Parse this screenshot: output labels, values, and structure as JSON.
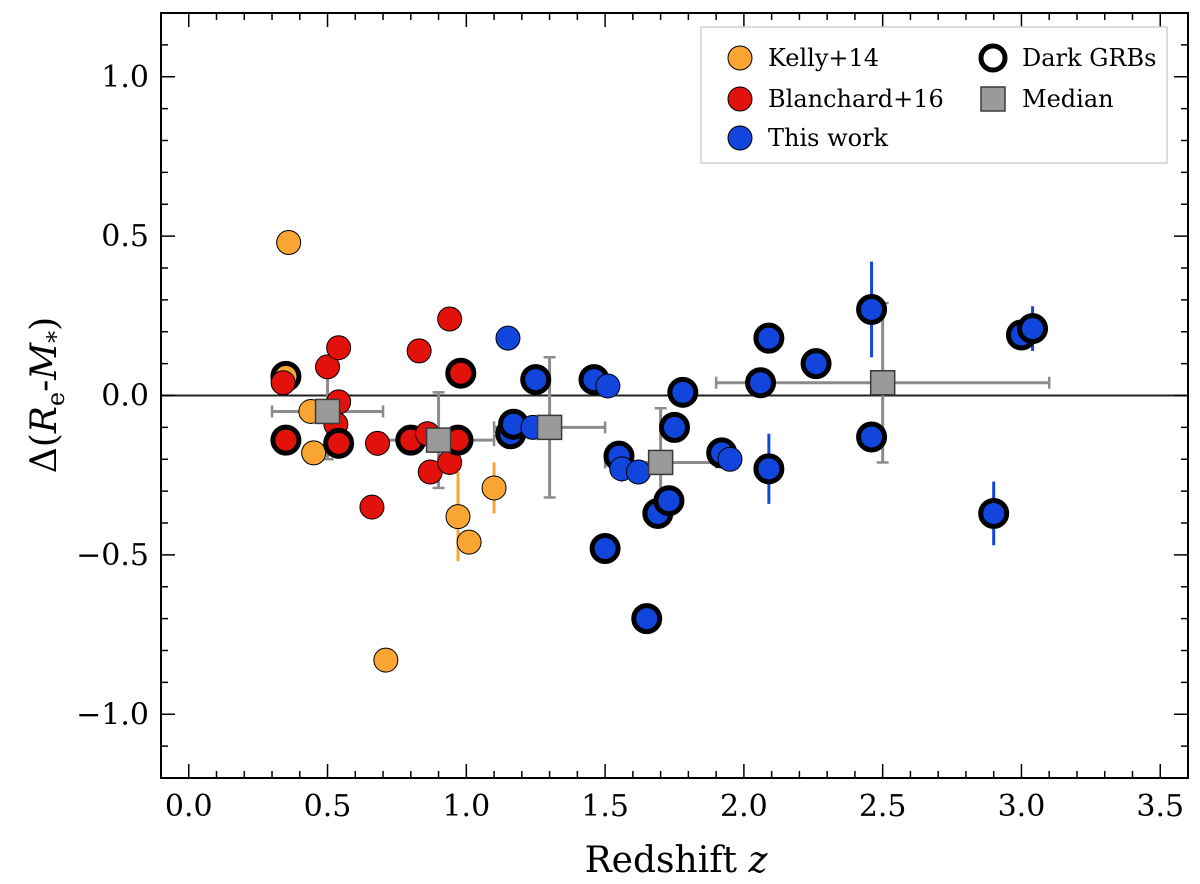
{
  "chart_data": {
    "type": "scatter",
    "xlabel": "Redshift z",
    "ylabel": "Δ(Re-M*)",
    "xlim": [
      -0.1,
      3.6
    ],
    "ylim": [
      -1.2,
      1.2
    ],
    "xticks": [
      "0.0",
      "0.5",
      "1.0",
      "1.5",
      "2.0",
      "2.5",
      "3.0",
      "3.5"
    ],
    "yticks": [
      "1.0",
      "0.5",
      "0.0",
      "−0.5",
      "−1.0"
    ],
    "xtick_values": [
      0.0,
      0.5,
      1.0,
      1.5,
      2.0,
      2.5,
      3.0,
      3.5
    ],
    "ytick_values": [
      1.0,
      0.5,
      0.0,
      -0.5,
      -1.0
    ],
    "reference_line_y": 0.0,
    "colors": {
      "kelly": "#f9a533",
      "blanchard": "#e3110c",
      "thiswork": "#1245db",
      "median": "#9a9a9a",
      "error_gray": "#8c8c8c"
    },
    "legend": {
      "position": "top-right",
      "entries": [
        {
          "label": "Kelly+14",
          "marker": "circle",
          "color": "#f9a533"
        },
        {
          "label": "Blanchard+16",
          "marker": "circle",
          "color": "#e3110c"
        },
        {
          "label": "This work",
          "marker": "circle",
          "color": "#1245db"
        },
        {
          "label": "Dark GRBs",
          "marker": "ring",
          "color": "#000000"
        },
        {
          "label": "Median",
          "marker": "square",
          "color": "#9a9a9a"
        }
      ]
    },
    "series": [
      {
        "name": "Kelly+14",
        "color": "#f9a533",
        "points": [
          {
            "x": 0.36,
            "y": 0.48
          },
          {
            "x": 0.35,
            "y": 0.06,
            "dark": true
          },
          {
            "x": 0.44,
            "y": -0.05
          },
          {
            "x": 0.45,
            "y": -0.18
          },
          {
            "x": 0.71,
            "y": -0.83
          },
          {
            "x": 0.97,
            "y": -0.38,
            "err": 0.14
          },
          {
            "x": 1.01,
            "y": -0.46
          },
          {
            "x": 1.1,
            "y": -0.29,
            "err": 0.08
          }
        ]
      },
      {
        "name": "Blanchard+16",
        "color": "#e3110c",
        "points": [
          {
            "x": 0.34,
            "y": 0.04
          },
          {
            "x": 0.35,
            "y": -0.14,
            "dark": true
          },
          {
            "x": 0.5,
            "y": 0.09
          },
          {
            "x": 0.54,
            "y": 0.15
          },
          {
            "x": 0.54,
            "y": -0.02
          },
          {
            "x": 0.53,
            "y": -0.09
          },
          {
            "x": 0.54,
            "y": -0.15,
            "dark": true
          },
          {
            "x": 0.66,
            "y": -0.35
          },
          {
            "x": 0.68,
            "y": -0.15
          },
          {
            "x": 0.8,
            "y": -0.14,
            "dark": true
          },
          {
            "x": 0.83,
            "y": 0.14
          },
          {
            "x": 0.86,
            "y": -0.12
          },
          {
            "x": 0.87,
            "y": -0.24
          },
          {
            "x": 0.94,
            "y": 0.24
          },
          {
            "x": 0.94,
            "y": -0.21
          },
          {
            "x": 0.97,
            "y": -0.14,
            "dark": true
          },
          {
            "x": 0.98,
            "y": 0.07,
            "dark": true
          }
        ]
      },
      {
        "name": "This work",
        "color": "#1245db",
        "points": [
          {
            "x": 1.16,
            "y": -0.12,
            "dark": true
          },
          {
            "x": 1.17,
            "y": -0.09,
            "dark": true
          },
          {
            "x": 1.15,
            "y": 0.18
          },
          {
            "x": 1.25,
            "y": 0.05,
            "dark": true
          },
          {
            "x": 1.24,
            "y": -0.1
          },
          {
            "x": 1.46,
            "y": 0.05,
            "dark": true
          },
          {
            "x": 1.51,
            "y": 0.03
          },
          {
            "x": 1.5,
            "y": -0.48,
            "dark": true
          },
          {
            "x": 1.55,
            "y": -0.19,
            "dark": true
          },
          {
            "x": 1.56,
            "y": -0.23,
            "err": 0.04
          },
          {
            "x": 1.62,
            "y": -0.24
          },
          {
            "x": 1.65,
            "y": -0.7,
            "dark": true
          },
          {
            "x": 1.69,
            "y": -0.37,
            "dark": true
          },
          {
            "x": 1.73,
            "y": -0.33,
            "dark": true
          },
          {
            "x": 1.75,
            "y": -0.1,
            "dark": true,
            "err": 0.04
          },
          {
            "x": 1.78,
            "y": 0.01,
            "dark": true
          },
          {
            "x": 1.92,
            "y": -0.18,
            "dark": true
          },
          {
            "x": 1.95,
            "y": -0.2
          },
          {
            "x": 2.06,
            "y": 0.04,
            "dark": true
          },
          {
            "x": 2.09,
            "y": 0.18,
            "dark": true
          },
          {
            "x": 2.09,
            "y": -0.23,
            "dark": true,
            "err": 0.11
          },
          {
            "x": 2.26,
            "y": 0.1,
            "dark": true
          },
          {
            "x": 2.46,
            "y": 0.27,
            "dark": true,
            "err": 0.15
          },
          {
            "x": 2.46,
            "y": -0.13,
            "dark": true
          },
          {
            "x": 2.9,
            "y": -0.37,
            "dark": true,
            "err": 0.1
          },
          {
            "x": 3.0,
            "y": 0.19,
            "dark": true
          },
          {
            "x": 3.04,
            "y": 0.21,
            "dark": true,
            "err": 0.07
          }
        ]
      }
    ],
    "median": [
      {
        "x": 0.5,
        "y": -0.05,
        "xerr": 0.2,
        "yerr_up": 0.15,
        "yerr_down": 0.15
      },
      {
        "x": 0.9,
        "y": -0.14,
        "xerr": 0.2,
        "yerr_up": 0.15,
        "yerr_down": 0.15
      },
      {
        "x": 1.3,
        "y": -0.1,
        "xerr": 0.2,
        "yerr_up": 0.22,
        "yerr_down": 0.22
      },
      {
        "x": 1.7,
        "y": -0.21,
        "xerr": 0.2,
        "yerr_up": 0.17,
        "yerr_down": 0.17
      },
      {
        "x": 2.5,
        "y": 0.04,
        "xerr": 0.6,
        "yerr_up": 0.25,
        "yerr_down": 0.25
      }
    ]
  }
}
